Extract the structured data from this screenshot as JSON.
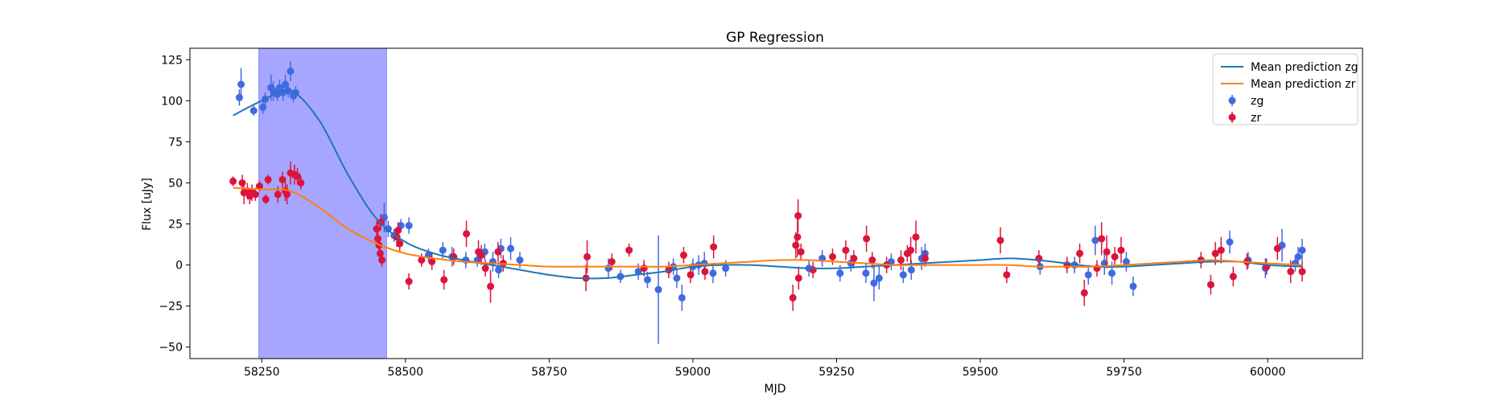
{
  "chart_data": {
    "type": "scatter",
    "title": "GP Regression",
    "xlabel": "MJD",
    "ylabel": "Flux [uJy]",
    "xlim": [
      58125,
      60165
    ],
    "ylim": [
      -57,
      132
    ],
    "xticks": [
      58250,
      58500,
      58750,
      59000,
      59250,
      59500,
      59750,
      60000
    ],
    "yticks": [
      -50,
      -25,
      0,
      25,
      50,
      75,
      100,
      125
    ],
    "grid": false,
    "legend": {
      "position": "top-right",
      "entries": [
        "Mean prediction zg",
        "Mean prediction zr",
        "zg",
        "zr"
      ]
    },
    "shaded_region": {
      "x0": 58245,
      "x1": 58467,
      "color": "#a6a6ff"
    },
    "colors": {
      "zg_line": "#1f77b4",
      "zr_line": "#ff7f0e",
      "zg_points": "#4169e1",
      "zr_points": "#dc143c"
    },
    "series": [
      {
        "name": "Mean prediction zg",
        "kind": "line",
        "x": [
          58200,
          58250,
          58300,
          58350,
          58400,
          58450,
          58500,
          58550,
          58600,
          58650,
          58700,
          58750,
          58800,
          58850,
          58900,
          58950,
          59000,
          59050,
          59100,
          59150,
          59200,
          59250,
          59300,
          59350,
          59400,
          59450,
          59500,
          59550,
          59600,
          59650,
          59700,
          59750,
          59800,
          59850,
          59900,
          59950,
          60000,
          60060
        ],
        "y": [
          91,
          100,
          106,
          88,
          55,
          28,
          14,
          7,
          3,
          0,
          -3,
          -6,
          -8,
          -8,
          -6,
          -4,
          -1,
          0,
          0,
          -1,
          -2,
          -2,
          -1,
          0,
          1,
          2,
          3,
          4,
          3,
          1,
          -1,
          -1,
          0,
          1,
          2,
          2,
          0,
          -1
        ]
      },
      {
        "name": "Mean prediction zr",
        "kind": "line",
        "x": [
          58200,
          58250,
          58300,
          58350,
          58400,
          58450,
          58500,
          58550,
          58600,
          58650,
          58700,
          58750,
          58800,
          58850,
          58900,
          58950,
          59000,
          59050,
          59100,
          59150,
          59200,
          59250,
          59300,
          59350,
          59400,
          59450,
          59500,
          59550,
          59600,
          59650,
          59700,
          59750,
          59800,
          59850,
          59900,
          59950,
          60000,
          60060
        ],
        "y": [
          47,
          46,
          45,
          35,
          22,
          13,
          7,
          4,
          2,
          1,
          0,
          -1,
          -1,
          -1,
          -1,
          -1,
          0,
          1,
          2,
          3,
          3,
          2,
          1,
          0,
          0,
          0,
          0,
          0,
          -1,
          -1,
          -1,
          0,
          1,
          2,
          3,
          2,
          1,
          0
        ]
      },
      {
        "name": "zg",
        "kind": "errorbar",
        "points": [
          [
            58211,
            102,
            5
          ],
          [
            58214,
            110,
            10
          ],
          [
            58236,
            94,
            3
          ],
          [
            58252,
            96,
            4
          ],
          [
            58256,
            101,
            4
          ],
          [
            58266,
            108,
            8
          ],
          [
            58270,
            106,
            6
          ],
          [
            58277,
            104,
            4
          ],
          [
            58281,
            108,
            5
          ],
          [
            58287,
            105,
            5
          ],
          [
            58291,
            110,
            6
          ],
          [
            58296,
            106,
            4
          ],
          [
            58300,
            118,
            6
          ],
          [
            58305,
            103,
            4
          ],
          [
            58309,
            105,
            4
          ],
          [
            58463,
            29,
            9
          ],
          [
            58470,
            22,
            5
          ],
          [
            58480,
            18,
            4
          ],
          [
            58492,
            24,
            4
          ],
          [
            58506,
            24,
            5
          ],
          [
            58540,
            6,
            4
          ],
          [
            58565,
            9,
            5
          ],
          [
            58581,
            5,
            6
          ],
          [
            58605,
            3,
            5
          ],
          [
            58625,
            3,
            4
          ],
          [
            58638,
            8,
            5
          ],
          [
            58652,
            2,
            6
          ],
          [
            58662,
            -3,
            5
          ],
          [
            58666,
            10,
            6
          ],
          [
            58683,
            10,
            7
          ],
          [
            58699,
            3,
            5
          ],
          [
            58853,
            -2,
            6
          ],
          [
            58874,
            -7,
            4
          ],
          [
            58905,
            -4,
            5
          ],
          [
            58921,
            -9,
            5
          ],
          [
            58940,
            -15,
            33
          ],
          [
            58966,
            -1,
            5
          ],
          [
            58972,
            -8,
            6
          ],
          [
            58981,
            -20,
            8
          ],
          [
            59000,
            -1,
            5
          ],
          [
            59010,
            0,
            6
          ],
          [
            59020,
            1,
            7
          ],
          [
            59035,
            -5,
            6
          ],
          [
            59057,
            -2,
            5
          ],
          [
            59202,
            -2,
            5
          ],
          [
            59225,
            4,
            5
          ],
          [
            59256,
            -5,
            5
          ],
          [
            59275,
            1,
            5
          ],
          [
            59301,
            -5,
            6
          ],
          [
            59315,
            -11,
            11
          ],
          [
            59324,
            -8,
            7
          ],
          [
            59345,
            2,
            5
          ],
          [
            59366,
            -6,
            5
          ],
          [
            59380,
            -3,
            6
          ],
          [
            59398,
            4,
            7
          ],
          [
            59404,
            7,
            6
          ],
          [
            59604,
            -1,
            5
          ],
          [
            59664,
            0,
            5
          ],
          [
            59688,
            -6,
            6
          ],
          [
            59700,
            15,
            9
          ],
          [
            59716,
            1,
            7
          ],
          [
            59729,
            -5,
            7
          ],
          [
            59754,
            2,
            6
          ],
          [
            59766,
            -13,
            6
          ],
          [
            59934,
            14,
            7
          ],
          [
            59966,
            3,
            5
          ],
          [
            59996,
            -2,
            6
          ],
          [
            60025,
            12,
            10
          ],
          [
            60048,
            1,
            5
          ],
          [
            60053,
            5,
            6
          ],
          [
            60060,
            9,
            7
          ]
        ]
      },
      {
        "name": "zr",
        "kind": "errorbar",
        "points": [
          [
            58200,
            51,
            3
          ],
          [
            58216,
            50,
            5
          ],
          [
            58219,
            44,
            7
          ],
          [
            58225,
            45,
            5
          ],
          [
            58229,
            42,
            5
          ],
          [
            58233,
            44,
            5
          ],
          [
            58239,
            43,
            4
          ],
          [
            58246,
            48,
            3
          ],
          [
            58257,
            40,
            3
          ],
          [
            58261,
            52,
            3
          ],
          [
            58278,
            43,
            5
          ],
          [
            58286,
            52,
            5
          ],
          [
            58291,
            45,
            6
          ],
          [
            58294,
            43,
            6
          ],
          [
            58300,
            56,
            7
          ],
          [
            58307,
            55,
            6
          ],
          [
            58312,
            54,
            5
          ],
          [
            58318,
            50,
            4
          ],
          [
            58450,
            22,
            5
          ],
          [
            58452,
            16,
            5
          ],
          [
            58454,
            12,
            5
          ],
          [
            58456,
            7,
            5
          ],
          [
            58457,
            26,
            5
          ],
          [
            58459,
            3,
            4
          ],
          [
            58485,
            17,
            6
          ],
          [
            58487,
            21,
            5
          ],
          [
            58490,
            13,
            5
          ],
          [
            58506,
            -10,
            5
          ],
          [
            58528,
            3,
            4
          ],
          [
            58546,
            2,
            5
          ],
          [
            58567,
            -9,
            6
          ],
          [
            58584,
            5,
            5
          ],
          [
            58606,
            19,
            8
          ],
          [
            58627,
            8,
            7
          ],
          [
            58632,
            6,
            6
          ],
          [
            58639,
            -2,
            5
          ],
          [
            58648,
            -13,
            10
          ],
          [
            58661,
            8,
            6
          ],
          [
            58670,
            1,
            5
          ],
          [
            58814,
            -8,
            8
          ],
          [
            58816,
            5,
            10
          ],
          [
            58859,
            2,
            5
          ],
          [
            58889,
            9,
            4
          ],
          [
            58915,
            -2,
            5
          ],
          [
            58958,
            -3,
            5
          ],
          [
            58984,
            6,
            5
          ],
          [
            58996,
            -6,
            5
          ],
          [
            59021,
            -4,
            5
          ],
          [
            59036,
            11,
            7
          ],
          [
            59174,
            -20,
            8
          ],
          [
            59179,
            12,
            8
          ],
          [
            59182,
            17,
            12
          ],
          [
            59183,
            30,
            10
          ],
          [
            59184,
            -8,
            7
          ],
          [
            59188,
            8,
            5
          ],
          [
            59209,
            -3,
            5
          ],
          [
            59243,
            5,
            5
          ],
          [
            59266,
            9,
            6
          ],
          [
            59280,
            4,
            5
          ],
          [
            59302,
            16,
            8
          ],
          [
            59312,
            3,
            5
          ],
          [
            59337,
            0,
            5
          ],
          [
            59362,
            3,
            6
          ],
          [
            59373,
            7,
            5
          ],
          [
            59379,
            9,
            8
          ],
          [
            59388,
            17,
            10
          ],
          [
            59404,
            4,
            5
          ],
          [
            59535,
            15,
            8
          ],
          [
            59546,
            -6,
            5
          ],
          [
            59602,
            4,
            5
          ],
          [
            59651,
            0,
            5
          ],
          [
            59673,
            7,
            6
          ],
          [
            59681,
            -17,
            8
          ],
          [
            59703,
            -2,
            5
          ],
          [
            59711,
            16,
            10
          ],
          [
            59720,
            8,
            10
          ],
          [
            59734,
            5,
            6
          ],
          [
            59745,
            9,
            8
          ],
          [
            59884,
            3,
            5
          ],
          [
            59901,
            -12,
            6
          ],
          [
            59909,
            7,
            7
          ],
          [
            59919,
            9,
            8
          ],
          [
            59940,
            -7,
            6
          ],
          [
            59964,
            2,
            5
          ],
          [
            59998,
            -1,
            5
          ],
          [
            60017,
            10,
            7
          ],
          [
            60040,
            -4,
            7
          ],
          [
            60060,
            -4,
            6
          ]
        ]
      }
    ]
  }
}
